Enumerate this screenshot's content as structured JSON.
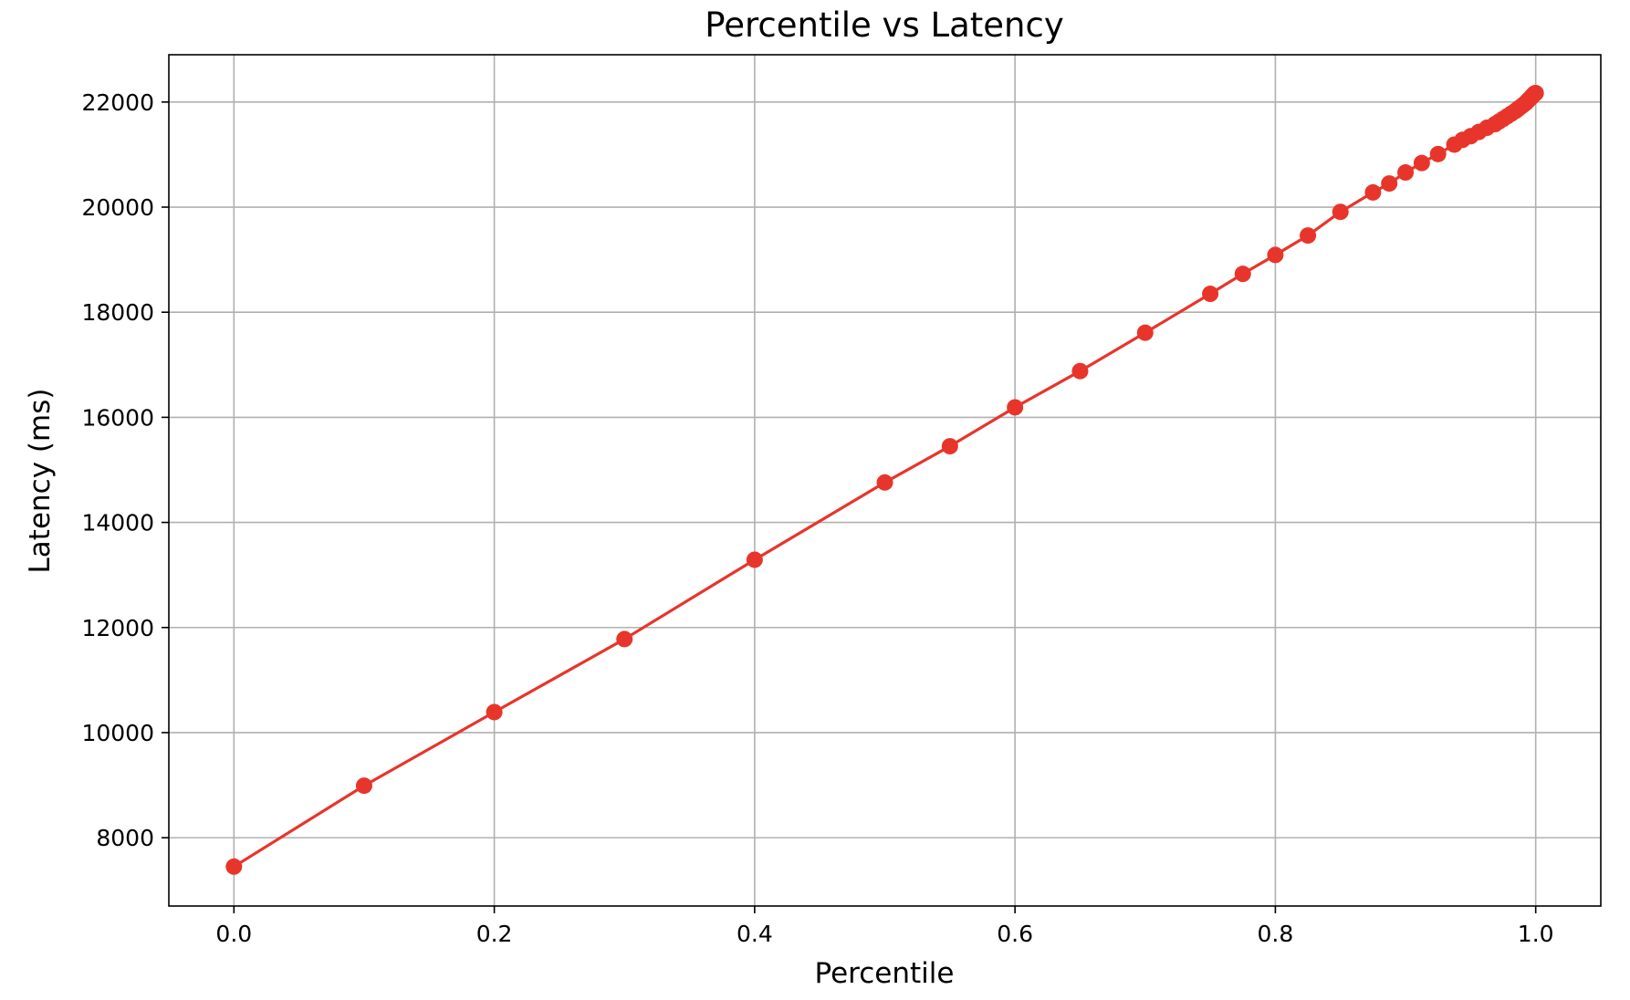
{
  "chart_data": {
    "type": "line",
    "title": "Percentile vs Latency",
    "xlabel": "Percentile",
    "ylabel": "Latency (ms)",
    "xlim": [
      -0.05,
      1.05
    ],
    "ylim": [
      6700,
      22900
    ],
    "x_ticks": [
      0.0,
      0.2,
      0.4,
      0.6,
      0.8,
      1.0
    ],
    "x_tick_labels": [
      "0.0",
      "0.2",
      "0.4",
      "0.6",
      "0.8",
      "1.0"
    ],
    "y_ticks": [
      8000,
      10000,
      12000,
      14000,
      16000,
      18000,
      20000,
      22000
    ],
    "y_tick_labels": [
      "8000",
      "10000",
      "12000",
      "14000",
      "16000",
      "18000",
      "20000",
      "22000"
    ],
    "grid": true,
    "legend": "none",
    "colors": {
      "series": "#e8352b"
    },
    "series": [
      {
        "x": [
          0.0,
          0.1,
          0.2,
          0.3,
          0.4,
          0.5,
          0.55,
          0.6,
          0.65,
          0.7,
          0.75,
          0.775,
          0.8,
          0.825,
          0.85,
          0.875,
          0.8875,
          0.9,
          0.9125,
          0.925,
          0.9375,
          0.94375,
          0.95,
          0.95625,
          0.9625,
          0.96875,
          0.971875,
          0.975,
          0.978125,
          0.98125,
          0.984375,
          0.9859375,
          0.9875,
          0.9890625,
          0.990625,
          0.9921875,
          0.99296875,
          0.99375,
          0.99453125,
          0.9953125,
          0.99609375,
          0.996484375,
          0.996875,
          0.997265625,
          0.99765625,
          0.998046875,
          0.998242188,
          0.9984375,
          0.998632813,
          0.998828125,
          0.999023438,
          0.999121094,
          0.99921875,
          0.999316406,
          0.999414063,
          0.999511719,
          1.0
        ],
        "y": [
          7450,
          8990,
          10390,
          11780,
          13290,
          14760,
          15450,
          16190,
          16880,
          17610,
          18350,
          18730,
          19090,
          19460,
          19910,
          20280,
          20450,
          20660,
          20840,
          21010,
          21190,
          21280,
          21350,
          21430,
          21510,
          21580,
          21630,
          21680,
          21730,
          21780,
          21830,
          21860,
          21890,
          21920,
          21950,
          21980,
          22000,
          22020,
          22040,
          22060,
          22080,
          22090,
          22100,
          22110,
          22120,
          22130,
          22135,
          22140,
          22145,
          22150,
          22155,
          22158,
          22160,
          22162,
          22164,
          22166,
          22170
        ]
      }
    ]
  }
}
